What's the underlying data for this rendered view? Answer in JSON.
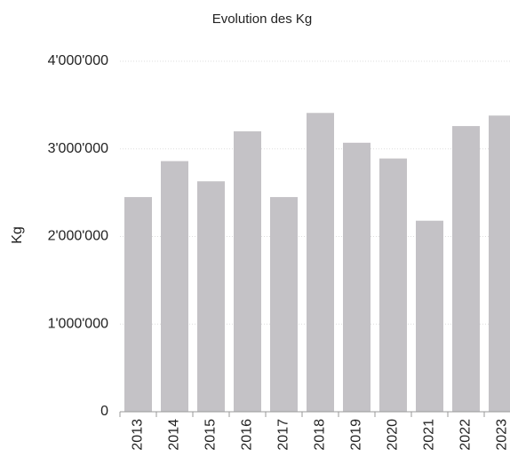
{
  "chart_data": {
    "type": "bar",
    "title": "Evolution des Kg",
    "y_label": "Kg",
    "categories": [
      "2013",
      "2014",
      "2015",
      "2016",
      "2017",
      "2018",
      "2019",
      "2020",
      "2021",
      "2022",
      "2023"
    ],
    "values": [
      2450000,
      2860000,
      2630000,
      3200000,
      2450000,
      3410000,
      3070000,
      2890000,
      2180000,
      3260000,
      3380000
    ],
    "color": "#c4c2c6",
    "ylim": [
      0,
      4000000
    ],
    "yticks": [
      0,
      {
        "value": 1000000,
        "label": "1'000'000"
      },
      {
        "value": 2000000,
        "label": "2'000'000"
      },
      {
        "value": 3000000,
        "label": "3'000'000"
      },
      {
        "value": 4000000,
        "label": "4'000'000"
      }
    ],
    "grid": true
  }
}
